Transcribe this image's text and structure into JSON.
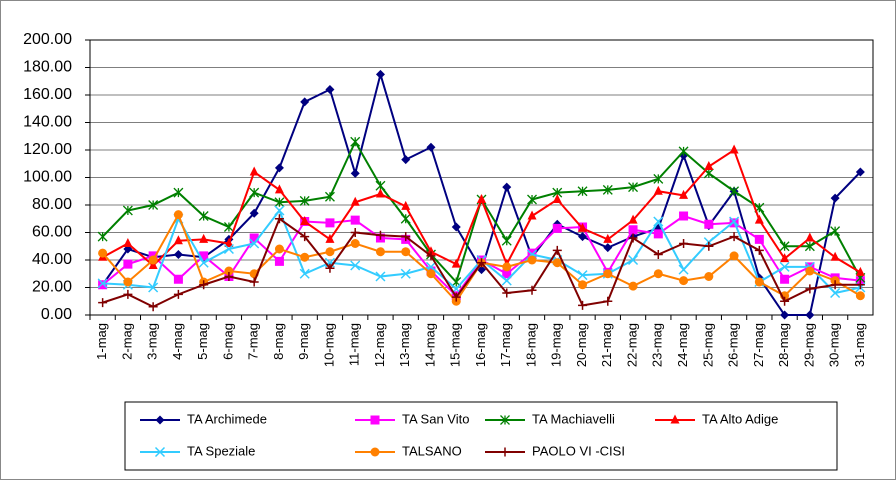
{
  "chart_data": {
    "type": "line",
    "categories": [
      "1-mag",
      "2-mag",
      "3-mag",
      "4-mag",
      "5-mag",
      "6-mag",
      "7-mag",
      "8-mag",
      "9-mag",
      "10-mag",
      "11-mag",
      "12-mag",
      "13-mag",
      "14-mag",
      "15-mag",
      "16-mag",
      "17-mag",
      "18-mag",
      "19-mag",
      "20-mag",
      "21-mag",
      "22-mag",
      "23-mag",
      "24-mag",
      "25-mag",
      "26-mag",
      "27-mag",
      "28-mag",
      "29-mag",
      "30-mag",
      "31-mag"
    ],
    "series": [
      {
        "name": "TA Archimede",
        "color": "#000080",
        "marker": "diamond",
        "values": [
          22,
          48,
          42,
          44,
          42,
          55,
          74,
          107,
          155,
          164,
          103,
          175,
          113,
          122,
          64,
          33,
          93,
          42,
          66,
          57,
          49,
          57,
          63,
          116,
          65,
          90,
          27,
          0,
          0,
          85,
          104
        ]
      },
      {
        "name": "TA San Vito",
        "color": "#ff00ff",
        "marker": "square",
        "values": [
          22,
          37,
          43,
          26,
          43,
          28,
          56,
          39,
          68,
          67,
          69,
          56,
          55,
          32,
          14,
          40,
          30,
          45,
          63,
          64,
          31,
          62,
          59,
          72,
          66,
          67,
          55,
          26,
          35,
          27,
          25
        ]
      },
      {
        "name": "TA Machiavelli",
        "color": "#008000",
        "marker": "star",
        "values": [
          57,
          76,
          80,
          89,
          72,
          64,
          89,
          82,
          83,
          86,
          126,
          94,
          70,
          44,
          24,
          84,
          54,
          84,
          89,
          90,
          91,
          93,
          99,
          119,
          103,
          90,
          78,
          50,
          50,
          61,
          27
        ]
      },
      {
        "name": "TA Alto Adige",
        "color": "#ff0000",
        "marker": "triangle",
        "values": [
          42,
          52,
          36,
          54,
          55,
          52,
          104,
          91,
          68,
          55,
          82,
          88,
          79,
          46,
          37,
          84,
          37,
          72,
          84,
          63,
          55,
          69,
          90,
          87,
          108,
          120,
          69,
          41,
          56,
          42,
          31
        ]
      },
      {
        "name": "TA Speziale",
        "color": "#33ccff",
        "marker": "x",
        "values": [
          23,
          22,
          20,
          70,
          38,
          48,
          52,
          76,
          30,
          38,
          36,
          28,
          30,
          35,
          19,
          40,
          25,
          44,
          40,
          29,
          30,
          40,
          68,
          33,
          53,
          68,
          24,
          35,
          35,
          16,
          20
        ]
      },
      {
        "name": "TALSANO",
        "color": "#ff8000",
        "marker": "circle",
        "values": [
          45,
          24,
          40,
          73,
          24,
          32,
          30,
          48,
          42,
          46,
          52,
          46,
          46,
          30,
          10,
          38,
          35,
          40,
          38,
          22,
          30,
          21,
          30,
          25,
          28,
          43,
          24,
          14,
          32,
          25,
          14
        ]
      },
      {
        "name": "PAOLO VI -CISI",
        "color": "#800000",
        "marker": "plus",
        "values": [
          9,
          15,
          6,
          15,
          22,
          28,
          24,
          70,
          57,
          34,
          60,
          58,
          57,
          43,
          13,
          38,
          16,
          18,
          47,
          7,
          10,
          56,
          44,
          52,
          50,
          57,
          47,
          10,
          19,
          22,
          22
        ]
      }
    ],
    "ylim": [
      0,
      200
    ],
    "yticks": [
      {
        "value": 0,
        "label": "0.00"
      },
      {
        "value": 20,
        "label": "20.00"
      },
      {
        "value": 40,
        "label": "40.00"
      },
      {
        "value": 60,
        "label": "60.00"
      },
      {
        "value": 80,
        "label": "80.00"
      },
      {
        "value": 100,
        "label": "100.00"
      },
      {
        "value": 120,
        "label": "120.00"
      },
      {
        "value": 140,
        "label": "140.00"
      },
      {
        "value": 160,
        "label": "160.00"
      },
      {
        "value": 180,
        "label": "180.00"
      },
      {
        "value": 200,
        "label": "200.00"
      }
    ],
    "grid": true,
    "legend": "bottom"
  }
}
